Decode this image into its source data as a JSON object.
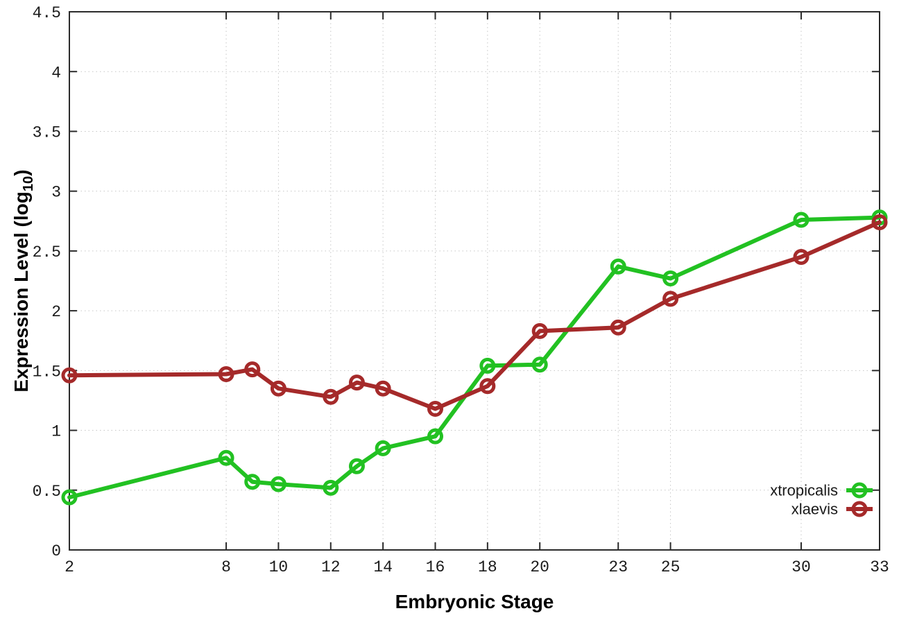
{
  "figure": {
    "background": "#ffffff",
    "ylabel_prefix": "Expression Level (log",
    "ylabel_sub": "10",
    "ylabel_suffix": ")"
  },
  "chart_data": {
    "type": "line",
    "title": "",
    "xlabel": "Embryonic Stage",
    "ylabel": "Expression Level (log10)",
    "xlim": [
      2,
      33
    ],
    "ylim": [
      0,
      4.5
    ],
    "x_ticks": [
      2,
      8,
      10,
      12,
      14,
      16,
      18,
      20,
      23,
      25,
      30,
      33
    ],
    "y_ticks": [
      0,
      0.5,
      1,
      1.5,
      2,
      2.5,
      3,
      3.5,
      4,
      4.5
    ],
    "grid": true,
    "legend_position": "bottom-right",
    "marker": "open-circle",
    "x": [
      2,
      8,
      9,
      10,
      12,
      13,
      14,
      16,
      18,
      20,
      23,
      25,
      30,
      33
    ],
    "series": [
      {
        "name": "xtropicalis",
        "color": "#22c122",
        "values": [
          0.44,
          0.77,
          0.57,
          0.55,
          0.52,
          0.7,
          0.85,
          0.95,
          1.54,
          1.55,
          2.37,
          2.27,
          2.76,
          2.78
        ]
      },
      {
        "name": "xlaevis",
        "color": "#a52a2a",
        "values": [
          1.46,
          1.47,
          1.51,
          1.35,
          1.28,
          1.4,
          1.35,
          1.18,
          1.37,
          1.83,
          1.86,
          2.1,
          2.45,
          2.74
        ]
      }
    ]
  },
  "style": {
    "axis_color": "#2b2b2b",
    "grid_color": "#c6c6c6",
    "tick_label_color": "#1a1a1a",
    "legend_text_color": "#1a1a1a"
  }
}
